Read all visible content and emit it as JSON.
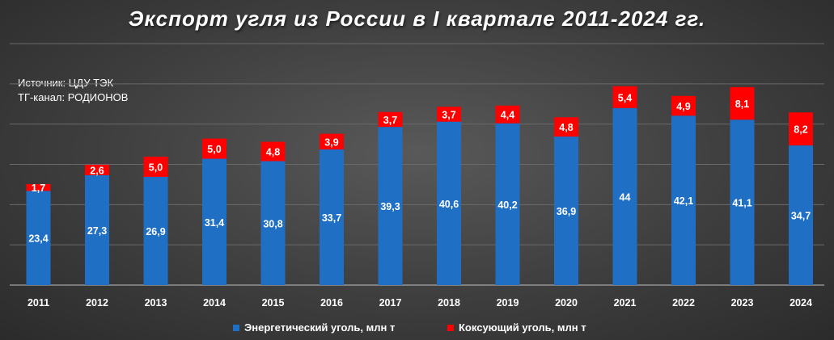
{
  "chart_data": {
    "type": "bar",
    "stacked": true,
    "title": "Экспорт угля из России в I квартале 2011-2024 гг.",
    "source_lines": [
      "Источник: ЦДУ ТЭК",
      "ТГ-канал: РОДИОНОВ"
    ],
    "categories": [
      "2011",
      "2012",
      "2013",
      "2014",
      "2015",
      "2016",
      "2017",
      "2018",
      "2019",
      "2020",
      "2021",
      "2022",
      "2023",
      "2024"
    ],
    "series": [
      {
        "name": "Энергетический уголь, млн т",
        "color": "#1f6fc5",
        "values": [
          23.4,
          27.3,
          26.9,
          31.4,
          30.8,
          33.7,
          39.3,
          40.6,
          40.2,
          36.9,
          44,
          42.1,
          41.1,
          34.7
        ],
        "labels": [
          "23,4",
          "27,3",
          "26,9",
          "31,4",
          "30,8",
          "33,7",
          "39,3",
          "40,6",
          "40,2",
          "36,9",
          "44",
          "42,1",
          "41,1",
          "34,7"
        ]
      },
      {
        "name": "Коксующий уголь, млн т",
        "color": "#ff0000",
        "values": [
          1.7,
          2.6,
          5.0,
          5.0,
          4.8,
          3.9,
          3.7,
          3.7,
          4.4,
          4.8,
          5.4,
          4.9,
          8.1,
          8.2
        ],
        "labels": [
          "1,7",
          "2,6",
          "5,0",
          "5,0",
          "4,8",
          "3,9",
          "3,7",
          "3,7",
          "4,4",
          "4,8",
          "5,4",
          "4,9",
          "8,1",
          "8,2"
        ]
      }
    ],
    "ylim": [
      0,
      60
    ],
    "grid": true,
    "legend_position": "bottom"
  }
}
